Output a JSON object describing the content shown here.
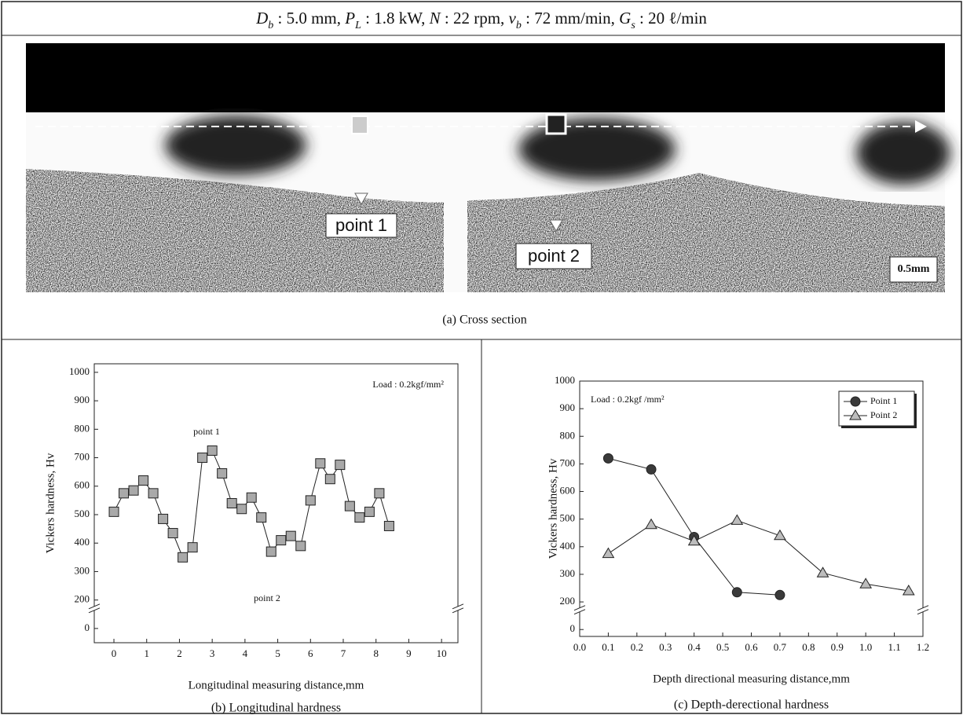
{
  "header": {
    "params": [
      {
        "symbol": "D",
        "sub": "b",
        "rest": " : 5.0 mm, "
      },
      {
        "symbol": "P",
        "sub": "L",
        "rest": " : 1.8 kW, "
      },
      {
        "symbol": "N",
        "rest": " : 22 rpm, "
      },
      {
        "symbol": "v",
        "sub": "b",
        "rest": " : 72 mm/min, "
      },
      {
        "symbol": "G",
        "sub": "s",
        "rest": " : 20 ℓ/min"
      }
    ]
  },
  "cross_section": {
    "labels": [
      "point 1",
      "point 2"
    ],
    "scale_bar": "0.5mm",
    "caption": "(a) Cross section"
  },
  "chart_data": [
    {
      "type": "line",
      "caption": "(b) Longitudinal hardness",
      "xlabel": "Longitudinal measuring distance,mm",
      "ylabel": "Vickers hardness, Hv",
      "annotations": [
        "Load : 0.2kgf/mm²",
        "point 1",
        "point 2"
      ],
      "series": [
        {
          "marker": "square",
          "color": "#a9a9a9",
          "x": [
            0,
            0.3,
            0.6,
            0.9,
            1.2,
            1.5,
            1.8,
            2.1,
            2.4,
            2.7,
            3.0,
            3.3,
            3.6,
            3.9,
            4.2,
            4.5,
            4.8,
            5.1,
            5.4,
            5.7,
            6.0,
            6.3,
            6.6,
            6.9,
            7.2,
            7.5,
            7.8,
            8.1,
            8.4
          ],
          "values": [
            510,
            575,
            585,
            620,
            575,
            485,
            435,
            350,
            385,
            700,
            725,
            645,
            540,
            520,
            560,
            490,
            370,
            410,
            425,
            390,
            550,
            680,
            625,
            675,
            530,
            490,
            510,
            575,
            460
          ]
        }
      ],
      "xlim": [
        -0.6,
        10.5
      ],
      "xticks": [
        0,
        1,
        2,
        3,
        4,
        5,
        6,
        7,
        8,
        9,
        10
      ],
      "ylim": [
        -100,
        1030
      ],
      "yticks": [
        0,
        200,
        300,
        400,
        500,
        600,
        700,
        800,
        900,
        1000
      ],
      "y_break": [
        0,
        200
      ]
    },
    {
      "type": "line",
      "caption": "(c) Depth-derectional hardness",
      "xlabel": "Depth directional measuring distance,mm",
      "ylabel": "Vickers hardness, Hv",
      "annotations": [
        "Load : 0.2kgf /mm²"
      ],
      "legend": "upper right",
      "series": [
        {
          "name": "Point 1",
          "marker": "circle",
          "color": "#3a3a3a",
          "x": [
            0.1,
            0.25,
            0.4,
            0.55,
            0.7
          ],
          "values": [
            720,
            680,
            435,
            235,
            225
          ]
        },
        {
          "name": "Point 2",
          "marker": "triangle",
          "color": "#bdbdbd",
          "x": [
            0.1,
            0.25,
            0.4,
            0.55,
            0.7,
            0.85,
            1.0,
            1.15
          ],
          "values": [
            375,
            480,
            420,
            495,
            440,
            305,
            265,
            240
          ]
        }
      ],
      "xlim": [
        0,
        1.2
      ],
      "xticks": [
        {
          "value": 0,
          "label": "0.0"
        },
        0.1,
        0.2,
        0.3,
        0.4,
        0.5,
        0.6,
        0.7,
        0.8,
        0.9,
        {
          "value": 1,
          "label": "1.0"
        },
        1.1,
        1.2
      ],
      "ylim": [
        -50,
        1000
      ],
      "yticks": [
        0,
        200,
        300,
        400,
        500,
        600,
        700,
        800,
        900,
        1000
      ],
      "y_break": [
        0,
        200
      ]
    }
  ]
}
